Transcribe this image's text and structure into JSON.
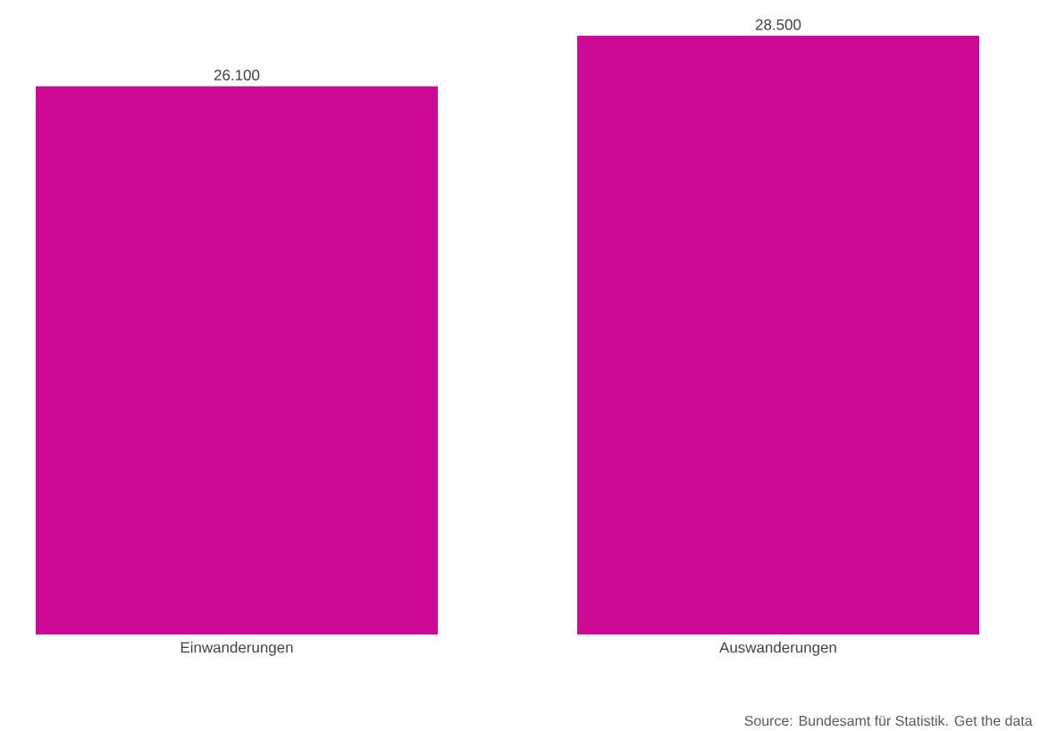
{
  "chart_data": {
    "type": "bar",
    "categories": [
      "Einwanderungen",
      "Auswanderungen"
    ],
    "values": [
      26100,
      28500
    ],
    "value_labels": [
      "26.100",
      "28.500"
    ],
    "color": "#cc0a93",
    "annotations": [
      "Source: Bundesamt für Statistik. Get the data"
    ]
  }
}
